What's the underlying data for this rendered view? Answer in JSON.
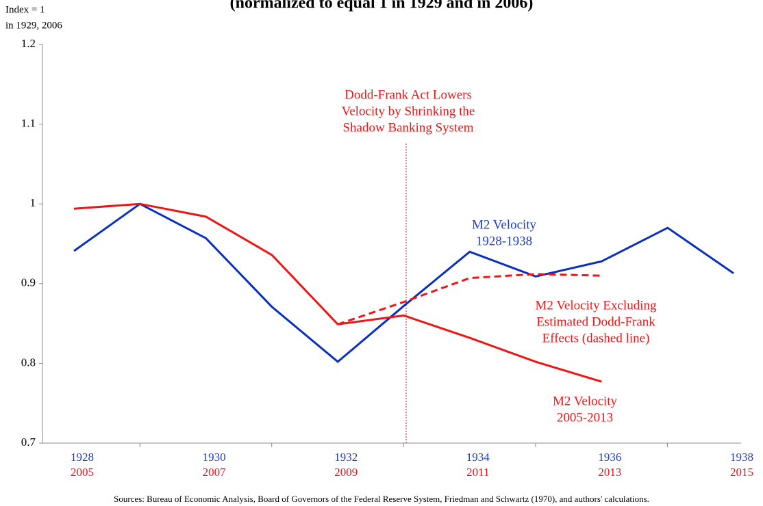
{
  "chart_data": {
    "type": "line",
    "title": "(normalized to equal 1 in 1929 and in 2006)",
    "y_label": [
      "Index = 1",
      "in 1929, 2006"
    ],
    "categories": [
      "1928",
      null,
      "1930",
      null,
      "1932",
      null,
      "1934",
      null,
      "1936",
      null,
      "1938"
    ],
    "categories2": [
      "2005",
      null,
      "2007",
      null,
      "2009",
      null,
      "2011",
      null,
      "2013",
      null,
      "2015"
    ],
    "categories_color": "#1f3fbf",
    "categories2_color": "#e8141b",
    "ylim": [
      0.7,
      1.2
    ],
    "yticks": [
      0.7,
      0.8,
      0.9,
      1,
      1.1,
      1.2
    ],
    "series": [
      {
        "name": "M2 Velocity 1928-1938",
        "color": "#0a2fbf",
        "dashed": false,
        "values": [
          0.941,
          1.0,
          0.957,
          0.871,
          0.802,
          0.872,
          0.94,
          0.909,
          0.928,
          0.97,
          0.913
        ]
      },
      {
        "name": "M2 Velocity 2005-2013",
        "color": "#f01414",
        "dashed": false,
        "values": [
          0.994,
          1.0,
          0.984,
          0.936,
          0.849,
          0.86,
          0.832,
          0.802,
          0.777,
          null,
          null
        ]
      },
      {
        "name": "M2 Velocity Excluding Estimated Dodd-Frank Effects (dashed line)",
        "color": "#f01414",
        "dashed": true,
        "values": [
          null,
          null,
          null,
          null,
          0.849,
          0.877,
          0.907,
          0.912,
          0.91,
          null,
          null
        ]
      }
    ],
    "annotations": [
      {
        "lines": [
          "Dodd-Frank Act Lowers",
          "Velocity by Shrinking the",
          "Shadow Banking System"
        ],
        "color": "#f01414"
      },
      {
        "lines": [
          "M2 Velocity",
          "1928-1938"
        ],
        "color": "#1f3fbf"
      },
      {
        "lines": [
          "M2 Velocity Excluding",
          "Estimated Dodd-Frank",
          "Effects (dashed line)"
        ],
        "color": "#f01414"
      },
      {
        "lines": [
          "M2 Velocity",
          "2005-2013"
        ],
        "color": "#f01414"
      }
    ],
    "source": "Sources: Bureau of Economic Analysis, Board of Governors of the Federal Reserve System, Friedman and Schwartz (1970), and authors' calculations."
  }
}
